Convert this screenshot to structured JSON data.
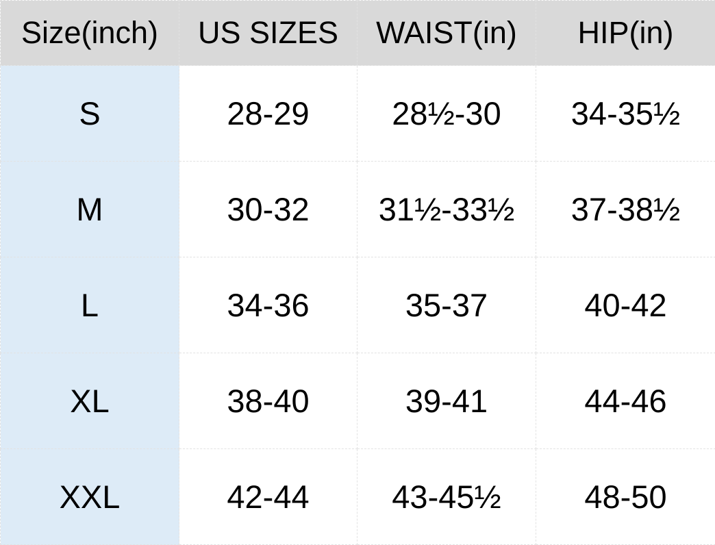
{
  "table": {
    "headers": [
      "Size(inch)",
      "US SIZES",
      "WAIST(in)",
      "HIP(in)"
    ],
    "rows": [
      [
        "S",
        "28-29",
        "28½-30",
        "34-35½"
      ],
      [
        "M",
        "30-32",
        "31½-33½",
        "37-38½"
      ],
      [
        "L",
        "34-36",
        "35-37",
        "40-42"
      ],
      [
        "XL",
        "38-40",
        "39-41",
        "44-46"
      ],
      [
        "XXL",
        "42-44",
        "43-45½",
        "48-50"
      ]
    ]
  },
  "colors": {
    "header_bg": "#d9d9d9",
    "size_column_bg": "#ddebf7"
  }
}
